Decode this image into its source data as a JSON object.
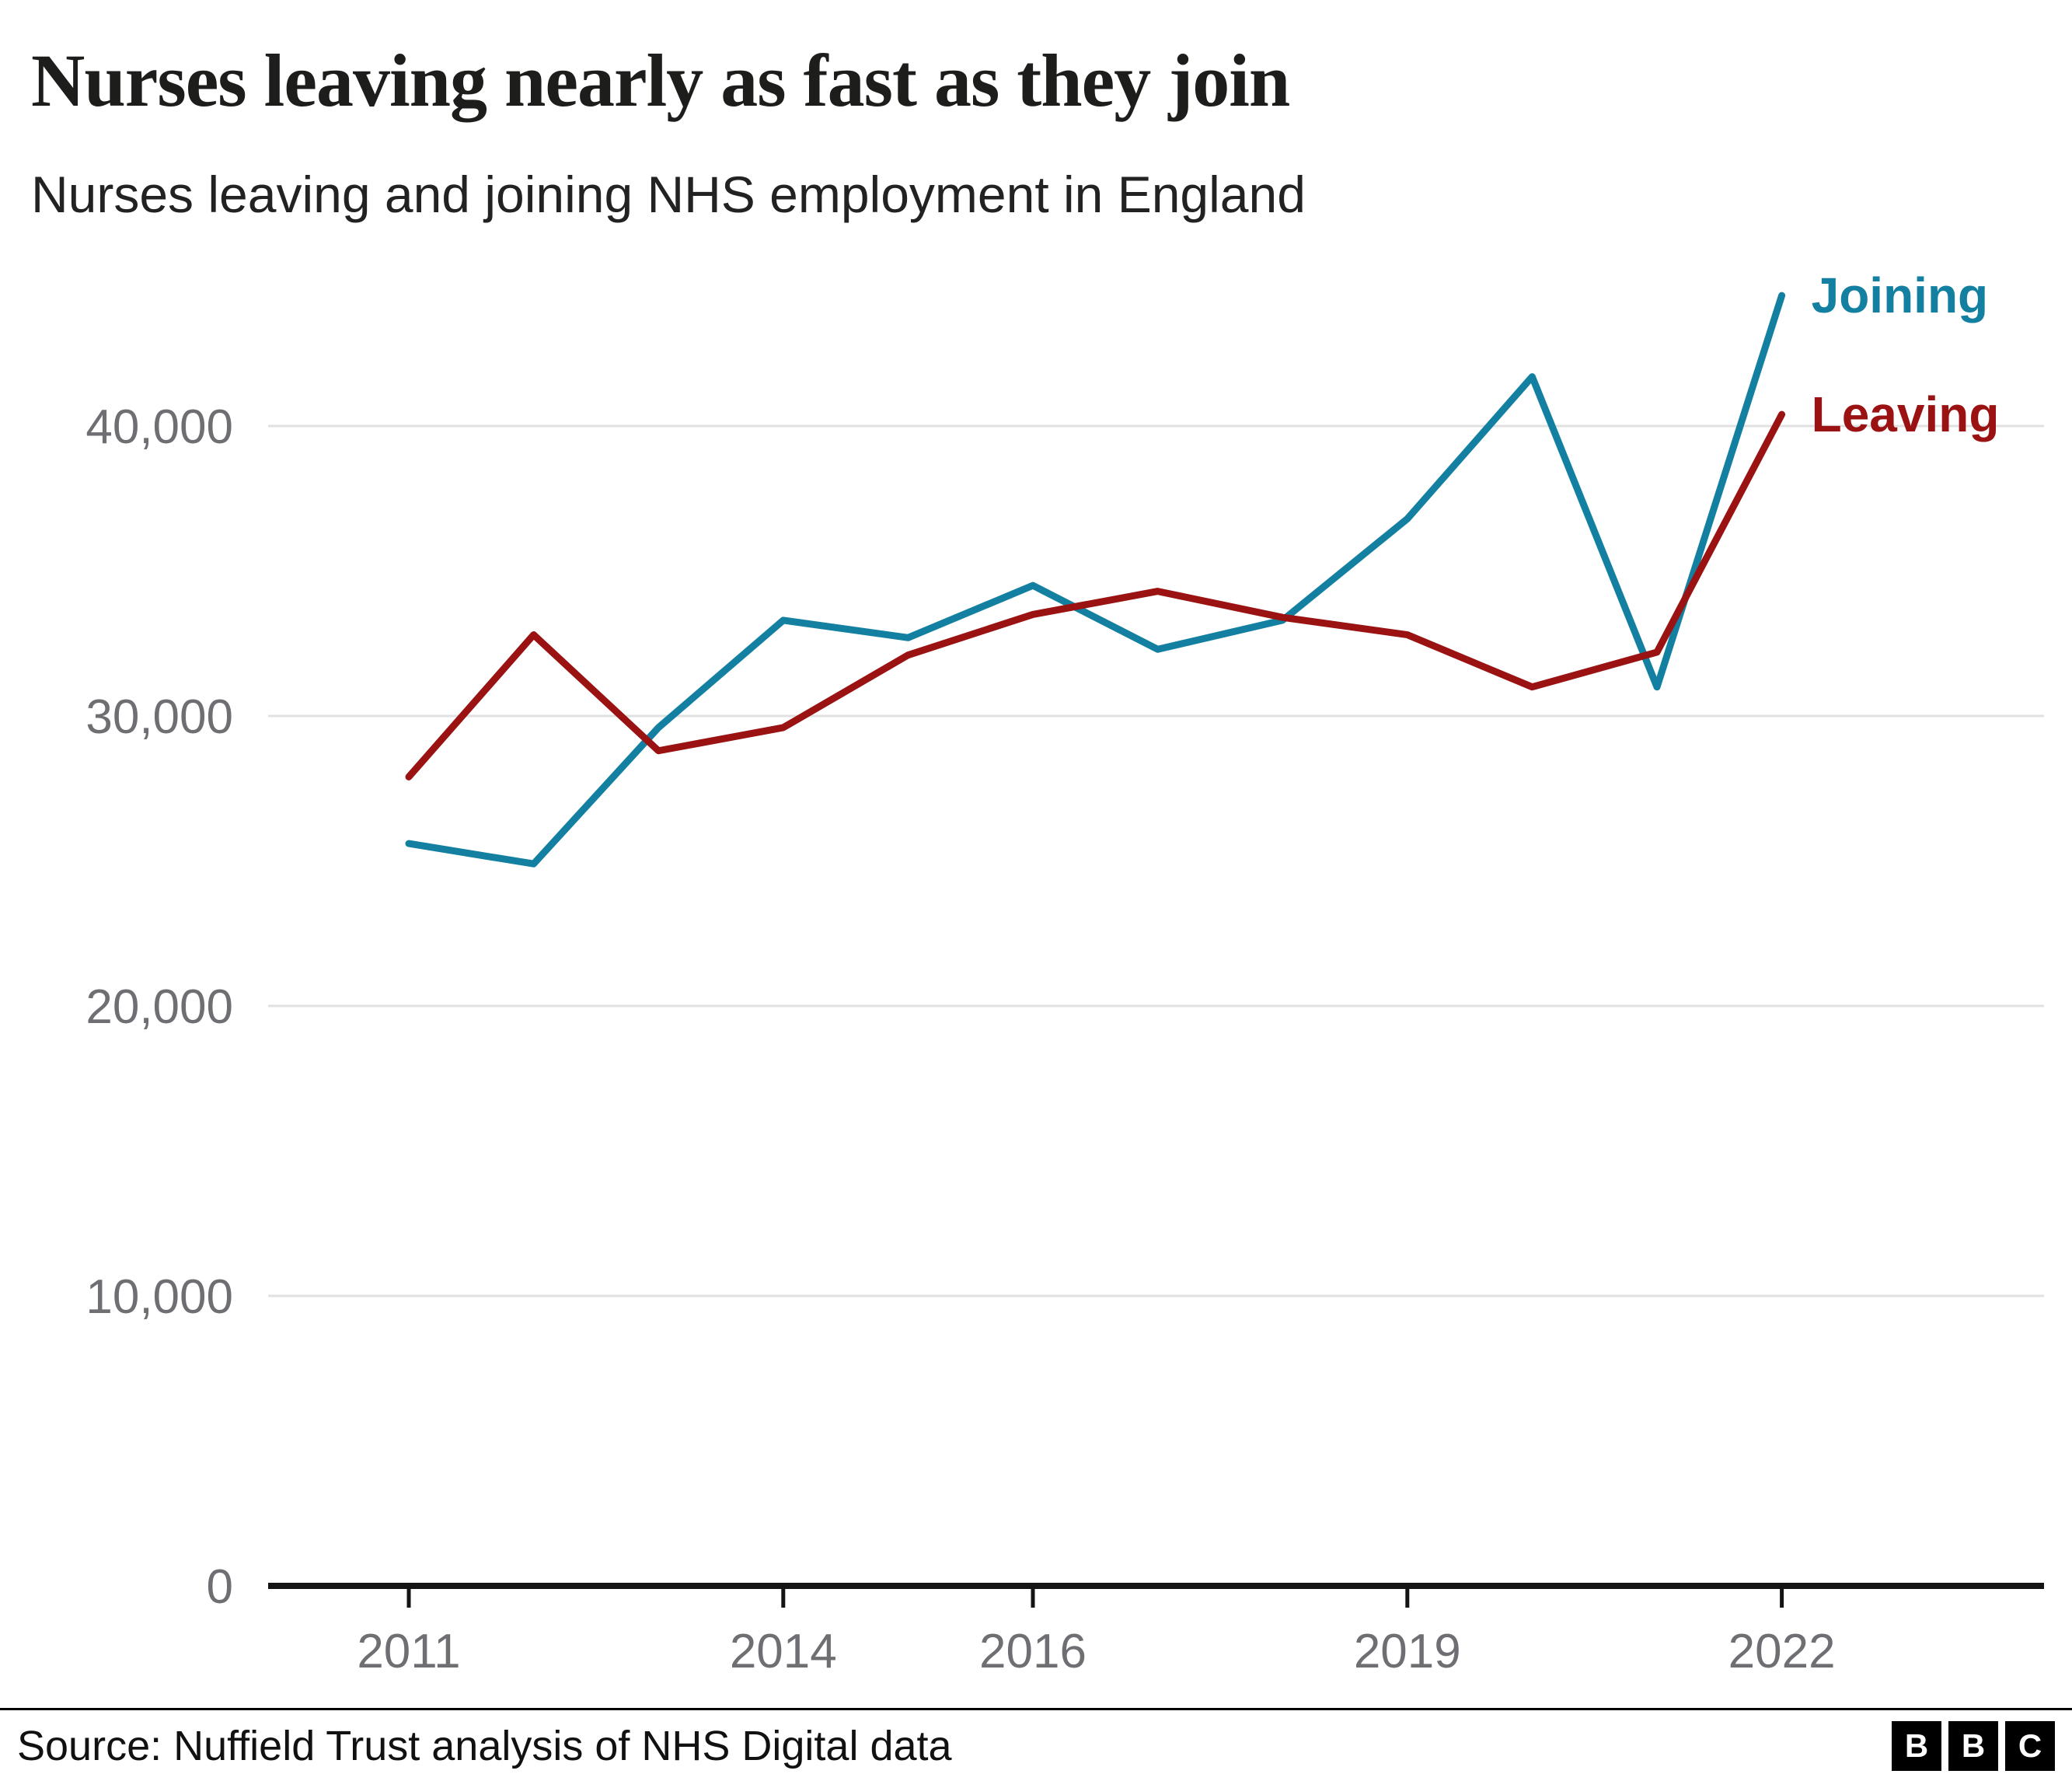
{
  "title": "Nurses leaving nearly as fast as they join",
  "subtitle": "Nurses leaving and joining NHS employment in England",
  "source": "Source: Nuffield Trust analysis of NHS Digital data",
  "logo": {
    "b1": "B",
    "b2": "B",
    "c": "C"
  },
  "colors": {
    "joining": "#1380A1",
    "leaving": "#9A1212",
    "grid": "#E1E1E1",
    "axis": "#141414",
    "tick_label": "#6E6E73"
  },
  "chart_data": {
    "type": "line",
    "title": "Nurses leaving nearly as fast as they join",
    "subtitle": "Nurses leaving and joining NHS employment in England",
    "x": [
      2011,
      2012,
      2013,
      2014,
      2015,
      2016,
      2017,
      2018,
      2019,
      2020,
      2021,
      2022
    ],
    "series": [
      {
        "name": "Joining",
        "color": "#1380A1",
        "values": [
          25600,
          24900,
          29600,
          33300,
          32700,
          34500,
          32300,
          33300,
          36800,
          41700,
          31000,
          44500
        ]
      },
      {
        "name": "Leaving",
        "color": "#9A1212",
        "values": [
          27900,
          32800,
          28800,
          29600,
          32100,
          33500,
          34300,
          33400,
          32800,
          31000,
          32200,
          40400
        ]
      }
    ],
    "ylim": [
      0,
      45000
    ],
    "yticks": [
      0,
      10000,
      20000,
      30000,
      40000
    ],
    "ytick_labels": [
      "0",
      "10,000",
      "20,000",
      "30,000",
      "40,000"
    ],
    "xticks": [
      2011,
      2014,
      2016,
      2019,
      2022
    ],
    "xtick_labels": [
      "2011",
      "2014",
      "2016",
      "2019",
      "2022"
    ],
    "grid": "horizontal",
    "legend_position": "right-of-line-ends"
  }
}
